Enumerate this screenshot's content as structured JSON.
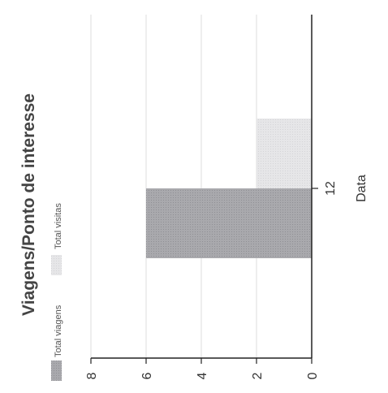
{
  "chart_data": {
    "type": "bar",
    "title": "Viagens/Ponto de interesse",
    "xlabel": "Data",
    "ylabel": "",
    "categories": [
      "12"
    ],
    "series": [
      {
        "name": "Total viagens",
        "values": [
          6
        ],
        "color": "#a9a9ad"
      },
      {
        "name": "Total visitas",
        "values": [
          2
        ],
        "color": "#e6e6e8"
      }
    ],
    "ylim": [
      0,
      8
    ],
    "yticks": [
      "0",
      "2",
      "4",
      "6",
      "8"
    ],
    "grid": true,
    "legend_position": "top",
    "orientation": "rotated-90-clockwise"
  }
}
